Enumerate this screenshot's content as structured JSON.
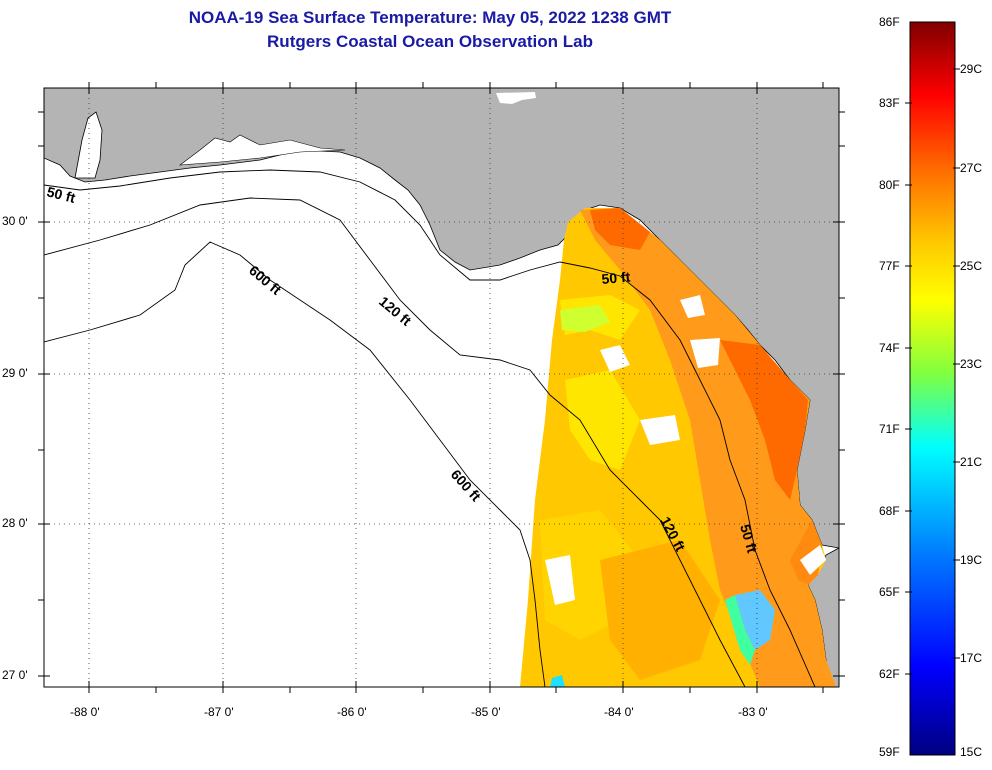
{
  "header": {
    "title_line1": "NOAA-19 Sea Surface Temperature:  May 05, 2022 1238 GMT",
    "title_line2": "Rutgers Coastal Ocean Observation Lab"
  },
  "map": {
    "lat_labels": [
      "30 0'",
      "29 0'",
      "28 0'",
      "27 0'"
    ],
    "lon_labels": [
      "-88 0'",
      "-87 0'",
      "-86 0'",
      "-85 0'",
      "-84 0'",
      "-83 0'"
    ],
    "contours": [
      {
        "label": "50 ft",
        "depth": 50
      },
      {
        "label": "120 ft",
        "depth": 120
      },
      {
        "label": "600 ft",
        "depth": 600
      }
    ],
    "contour_text": {
      "c50_west": "50 ft",
      "c600_north": "600 ft",
      "c120_north": "120 ft",
      "c50_mid": "50 ft",
      "c600_south": "600 ft",
      "c120_south": "120 ft",
      "c50_south": "50 ft"
    },
    "colors": {
      "land": "#b4b4b4",
      "water": "#ffffff",
      "coast": "#000000"
    }
  },
  "colorbar": {
    "f_labels": [
      "86F",
      "83F",
      "80F",
      "77F",
      "74F",
      "71F",
      "68F",
      "65F",
      "62F",
      "59F"
    ],
    "c_labels": [
      "29C",
      "27C",
      "25C",
      "23C",
      "21C",
      "19C",
      "17C",
      "15C"
    ],
    "stops": [
      "#800000",
      "#ff0000",
      "#ff6a00",
      "#ffc800",
      "#ffff00",
      "#80ff40",
      "#00ffff",
      "#0080ff",
      "#0000ff",
      "#000080"
    ]
  }
}
